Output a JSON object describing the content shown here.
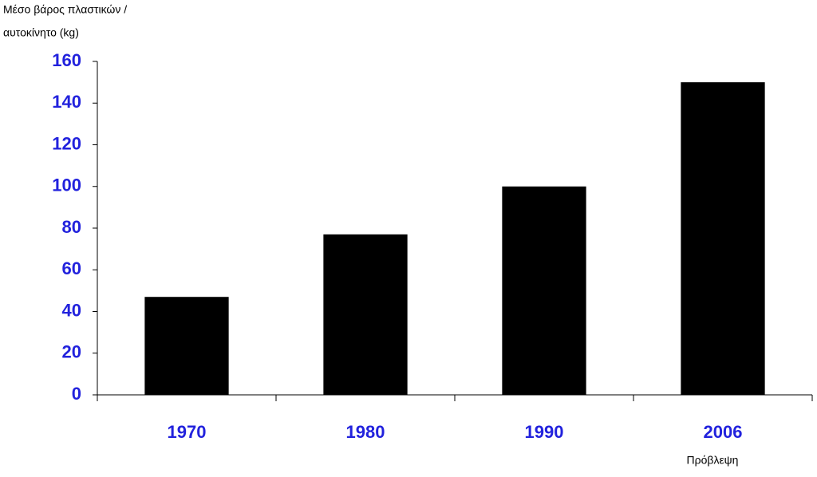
{
  "chart_data": {
    "type": "bar",
    "y_label": [
      "Μέσο βάρος πλαστικών /",
      "αυτοκίνητο (kg)"
    ],
    "categories": [
      "1970",
      "1980",
      "1990",
      "2006"
    ],
    "values": [
      47,
      77,
      100,
      150
    ],
    "color": "#000000",
    "tick_color": "#2222dd",
    "ylim": [
      0,
      160
    ],
    "yticks": [
      0,
      20,
      40,
      60,
      80,
      100,
      120,
      140,
      160
    ],
    "grid": false,
    "annotation": "Πρόβλεψη"
  }
}
